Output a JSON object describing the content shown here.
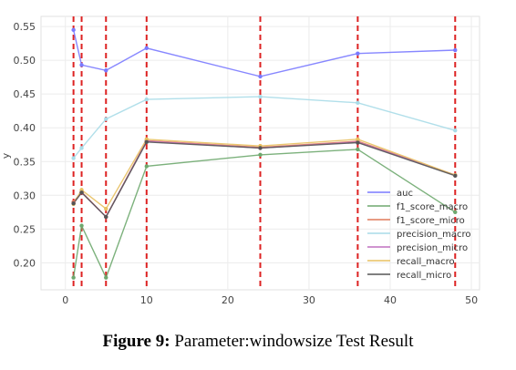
{
  "caption": {
    "label": "Figure 9:",
    "text": "Parameter:windowsize Test Result"
  },
  "chart_data": {
    "type": "line",
    "xlabel": "",
    "ylabel": "y",
    "xlim": [
      -3,
      51
    ],
    "ylim": [
      0.16,
      0.565
    ],
    "xticks": [
      0,
      10,
      20,
      30,
      40,
      50
    ],
    "yticks": [
      0.2,
      0.25,
      0.3,
      0.35,
      0.4,
      0.45,
      0.5,
      0.55
    ],
    "vlines": [
      1,
      2,
      5,
      10,
      24,
      36,
      48
    ],
    "grid": true,
    "legend_position": "bottom-right",
    "x": [
      1,
      2,
      5,
      10,
      24,
      36,
      48
    ],
    "series": [
      {
        "name": "auc",
        "color": "#7a7aff",
        "values": [
          0.545,
          0.493,
          0.485,
          0.518,
          0.476,
          0.51,
          0.515
        ]
      },
      {
        "name": "f1_score_macro",
        "color": "#6ea86e",
        "values": [
          0.178,
          0.255,
          0.178,
          0.343,
          0.36,
          0.368,
          0.275
        ]
      },
      {
        "name": "f1_score_micro",
        "color": "#e07a5a",
        "values": [
          0.29,
          0.305,
          0.268,
          0.381,
          0.371,
          0.38,
          0.33
        ]
      },
      {
        "name": "precision_macro",
        "color": "#a8dce8",
        "values": [
          0.355,
          0.37,
          0.413,
          0.442,
          0.446,
          0.437,
          0.396
        ]
      },
      {
        "name": "precision_micro",
        "color": "#c070c0",
        "values": [
          0.288,
          0.304,
          0.268,
          0.38,
          0.37,
          0.379,
          0.33
        ]
      },
      {
        "name": "recall_macro",
        "color": "#e8c060",
        "values": [
          0.287,
          0.308,
          0.28,
          0.383,
          0.373,
          0.383,
          0.33
        ]
      },
      {
        "name": "recall_micro",
        "color": "#555555",
        "values": [
          0.288,
          0.304,
          0.268,
          0.379,
          0.37,
          0.378,
          0.329
        ]
      }
    ]
  }
}
